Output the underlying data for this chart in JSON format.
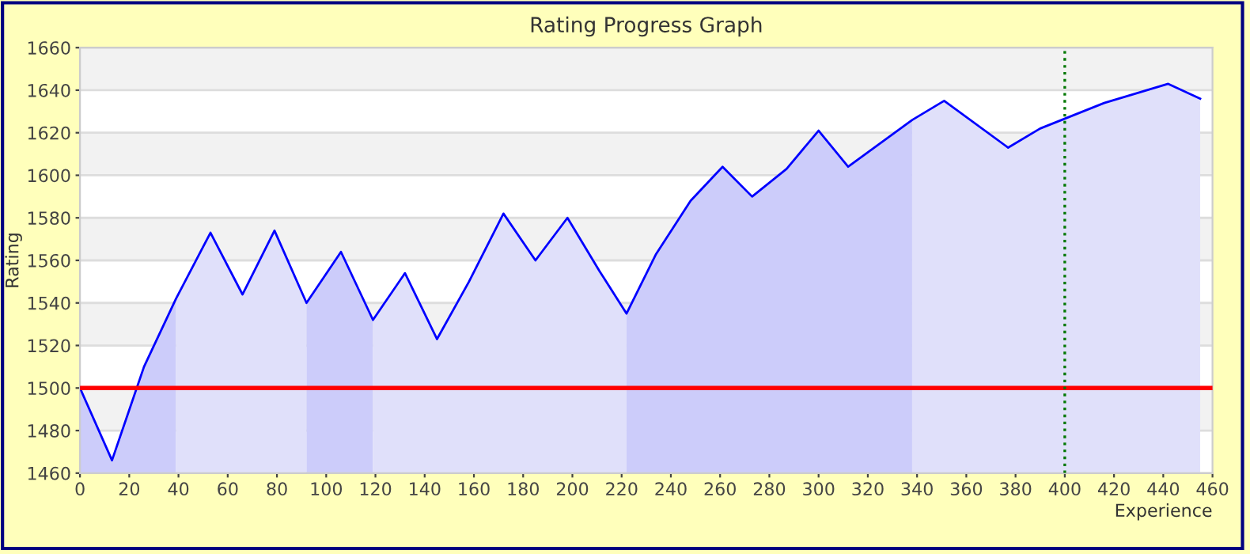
{
  "chart_data": {
    "type": "area",
    "title": "Rating Progress Graph",
    "xlabel": "Experience",
    "ylabel": "Rating",
    "series": [
      {
        "color": "#ccccfa",
        "x": [
          0,
          13,
          26,
          39
        ],
        "values": [
          1500,
          1466,
          1510,
          1542
        ]
      },
      {
        "color": "#e0e0fa",
        "x": [
          39,
          53,
          66,
          79,
          92
        ],
        "values": [
          1542,
          1573,
          1544,
          1574,
          1540
        ]
      },
      {
        "color": "#ccccfa",
        "x": [
          92,
          106,
          119
        ],
        "values": [
          1540,
          1564,
          1532
        ]
      },
      {
        "color": "#e0e0fa",
        "x": [
          119,
          132,
          145,
          158,
          172,
          185,
          198,
          211,
          222
        ],
        "values": [
          1532,
          1554,
          1523,
          1550,
          1582,
          1560,
          1580,
          1555,
          1535
        ]
      },
      {
        "color": "#ccccfa",
        "x": [
          222,
          234,
          248,
          261,
          273,
          287,
          300,
          312,
          338
        ],
        "values": [
          1535,
          1563,
          1588,
          1604,
          1590,
          1603,
          1621,
          1604,
          1626
        ]
      },
      {
        "color": "#e0e0fa",
        "x": [
          338,
          351,
          377,
          390,
          416,
          442,
          455
        ],
        "values": [
          1626,
          1635,
          1613,
          1622,
          1634,
          1643,
          1636
        ]
      },
      {
        "type": "line",
        "color": "#0000ff",
        "x": [
          0,
          13,
          26,
          39,
          53,
          66,
          79,
          92,
          106,
          119,
          132,
          145,
          158,
          172,
          185,
          198,
          211,
          222,
          234,
          248,
          261,
          273,
          287,
          300,
          312,
          338,
          351,
          377,
          390,
          416,
          442,
          455
        ],
        "values": [
          1500,
          1466,
          1510,
          1542,
          1573,
          1544,
          1574,
          1540,
          1564,
          1532,
          1554,
          1523,
          1550,
          1582,
          1560,
          1580,
          1555,
          1535,
          1563,
          1588,
          1604,
          1590,
          1603,
          1621,
          1604,
          1626,
          1635,
          1613,
          1622,
          1634,
          1643,
          1636
        ]
      }
    ],
    "xlim": [
      0,
      460
    ],
    "xticks": [
      0,
      20,
      40,
      60,
      80,
      100,
      120,
      140,
      160,
      180,
      200,
      220,
      240,
      260,
      280,
      300,
      320,
      340,
      360,
      380,
      400,
      420,
      440,
      460
    ],
    "ylim": [
      1460,
      1660
    ],
    "yticks": [
      1460,
      1480,
      1500,
      1520,
      1540,
      1560,
      1580,
      1600,
      1620,
      1640,
      1660
    ],
    "grid": "y",
    "legend": false,
    "ref_lines": [
      {
        "axis": "y",
        "value": 1500,
        "color": "#ff0000",
        "line_style": "solid"
      },
      {
        "axis": "x",
        "value": 400,
        "color": "#007700",
        "line_style": "dotted"
      }
    ]
  }
}
